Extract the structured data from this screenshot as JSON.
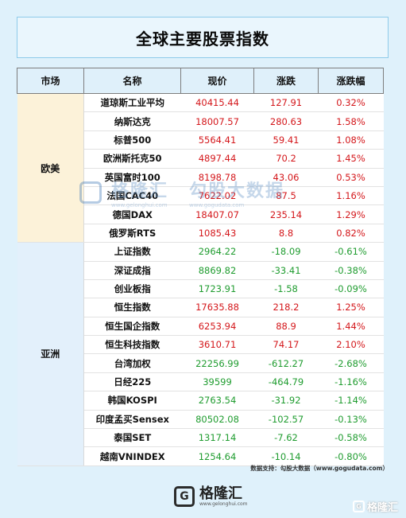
{
  "title": "全球主要股票指数",
  "headers": [
    "市场",
    "名称",
    "现价",
    "涨跌",
    "涨跌幅"
  ],
  "regions": [
    {
      "name": "欧美",
      "rows": [
        {
          "name": "道琼斯工业平均",
          "price": "40415.44",
          "change": "127.91",
          "pct": "0.32%",
          "dir": "up"
        },
        {
          "name": "纳斯达克",
          "price": "18007.57",
          "change": "280.63",
          "pct": "1.58%",
          "dir": "up"
        },
        {
          "name": "标普500",
          "price": "5564.41",
          "change": "59.41",
          "pct": "1.08%",
          "dir": "up"
        },
        {
          "name": "欧洲斯托克50",
          "price": "4897.44",
          "change": "70.2",
          "pct": "1.45%",
          "dir": "up"
        },
        {
          "name": "英国富时100",
          "price": "8198.78",
          "change": "43.06",
          "pct": "0.53%",
          "dir": "up"
        },
        {
          "name": "法国CAC40",
          "price": "7622.02",
          "change": "87.5",
          "pct": "1.16%",
          "dir": "up"
        },
        {
          "name": "德国DAX",
          "price": "18407.07",
          "change": "235.14",
          "pct": "1.29%",
          "dir": "up"
        },
        {
          "name": "俄罗斯RTS",
          "price": "1085.43",
          "change": "8.8",
          "pct": "0.82%",
          "dir": "up"
        }
      ]
    },
    {
      "name": "亚洲",
      "rows": [
        {
          "name": "上证指数",
          "price": "2964.22",
          "change": "-18.09",
          "pct": "-0.61%",
          "dir": "down"
        },
        {
          "name": "深证成指",
          "price": "8869.82",
          "change": "-33.41",
          "pct": "-0.38%",
          "dir": "down"
        },
        {
          "name": "创业板指",
          "price": "1723.91",
          "change": "-1.58",
          "pct": "-0.09%",
          "dir": "down"
        },
        {
          "name": "恒生指数",
          "price": "17635.88",
          "change": "218.2",
          "pct": "1.25%",
          "dir": "up"
        },
        {
          "name": "恒生国企指数",
          "price": "6253.94",
          "change": "88.9",
          "pct": "1.44%",
          "dir": "up"
        },
        {
          "name": "恒生科技指数",
          "price": "3610.71",
          "change": "74.17",
          "pct": "2.10%",
          "dir": "up"
        },
        {
          "name": "台湾加权",
          "price": "22256.99",
          "change": "-612.27",
          "pct": "-2.68%",
          "dir": "down"
        },
        {
          "name": "日经225",
          "price": "39599",
          "change": "-464.79",
          "pct": "-1.16%",
          "dir": "down"
        },
        {
          "name": "韩国KOSPI",
          "price": "2763.54",
          "change": "-31.92",
          "pct": "-1.14%",
          "dir": "down"
        },
        {
          "name": "印度孟买Sensex",
          "price": "80502.08",
          "change": "-102.57",
          "pct": "-0.13%",
          "dir": "down"
        },
        {
          "name": "泰国SET",
          "price": "1317.14",
          "change": "-7.62",
          "pct": "-0.58%",
          "dir": "down"
        },
        {
          "name": "越南VNINDEX",
          "price": "1254.64",
          "change": "-10.14",
          "pct": "-0.80%",
          "dir": "down"
        }
      ]
    }
  ],
  "watermark": {
    "brand": "格隆汇",
    "url": "www.gelonghui.com",
    "partner": "勾股大数据",
    "partner_url": "www.gogudata.com"
  },
  "source_text": "数据支持：勾股大数据（www.gogudata.com）",
  "footer": {
    "brand": "格隆汇",
    "url": "www.gelonghui.com",
    "logo_letter": "G"
  },
  "corner_mark": "格隆汇",
  "colors": {
    "up": "#d4171b",
    "down": "#1f9c2f",
    "europe_bg": "#fcf2d9",
    "asia_bg": "#e3f0fb",
    "page_bg": "#dff1fb"
  }
}
